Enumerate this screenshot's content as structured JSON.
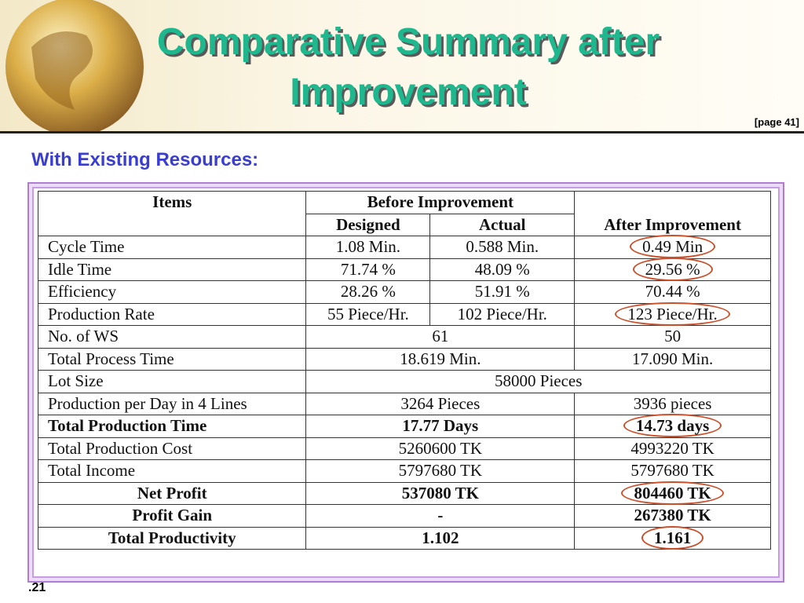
{
  "header": {
    "title": "Comparative Summary after Improvement",
    "page_ref": "[page 41]"
  },
  "subtitle": "With Existing Resources:",
  "table": {
    "header": {
      "items": "Items",
      "before": "Before Improvement",
      "designed": "Designed",
      "actual": "Actual",
      "after": "After Improvement"
    },
    "rows": [
      {
        "cells": [
          "Cycle Time",
          "1.08 Min.",
          "0.588 Min.",
          "0.49 Min"
        ],
        "circled": true
      },
      {
        "cells": [
          "Idle Time",
          "71.74 %",
          "48.09 %",
          "29.56 %"
        ],
        "circled": true
      },
      {
        "cells": [
          "Efficiency",
          "28.26 %",
          "51.91 %",
          "70.44 %"
        ]
      },
      {
        "cells": [
          "Production Rate",
          "55 Piece/Hr.",
          "102 Piece/Hr.",
          "123 Piece/Hr."
        ],
        "circled": true
      },
      {
        "cells": [
          "No. of WS",
          "61",
          "50"
        ]
      },
      {
        "cells": [
          "Total Process Time",
          "18.619 Min.",
          "17.090 Min."
        ]
      },
      {
        "cells": [
          "Lot Size",
          "58000 Pieces"
        ]
      },
      {
        "cells": [
          "Production per Day in 4 Lines",
          "3264 Pieces",
          "3936 pieces"
        ]
      },
      {
        "cells": [
          "Total Production Time",
          "17.77 Days",
          "14.73 days"
        ],
        "bold": true,
        "circled": true
      },
      {
        "cells": [
          "Total Production Cost",
          "5260600 TK",
          "4993220 TK"
        ]
      },
      {
        "cells": [
          "Total Income",
          "5797680 TK",
          "5797680 TK"
        ]
      },
      {
        "cells": [
          "Net Profit",
          "537080 TK",
          "804460 TK"
        ],
        "bold": true,
        "circled": true,
        "align": "center"
      },
      {
        "cells": [
          "Profit Gain",
          "-",
          "267380 TK"
        ],
        "bold": true,
        "align": "center"
      },
      {
        "cells": [
          "Total Productivity",
          "1.102",
          "1.161"
        ],
        "bold": true,
        "circled": true,
        "align": "center"
      }
    ]
  },
  "slide_number": ".21"
}
